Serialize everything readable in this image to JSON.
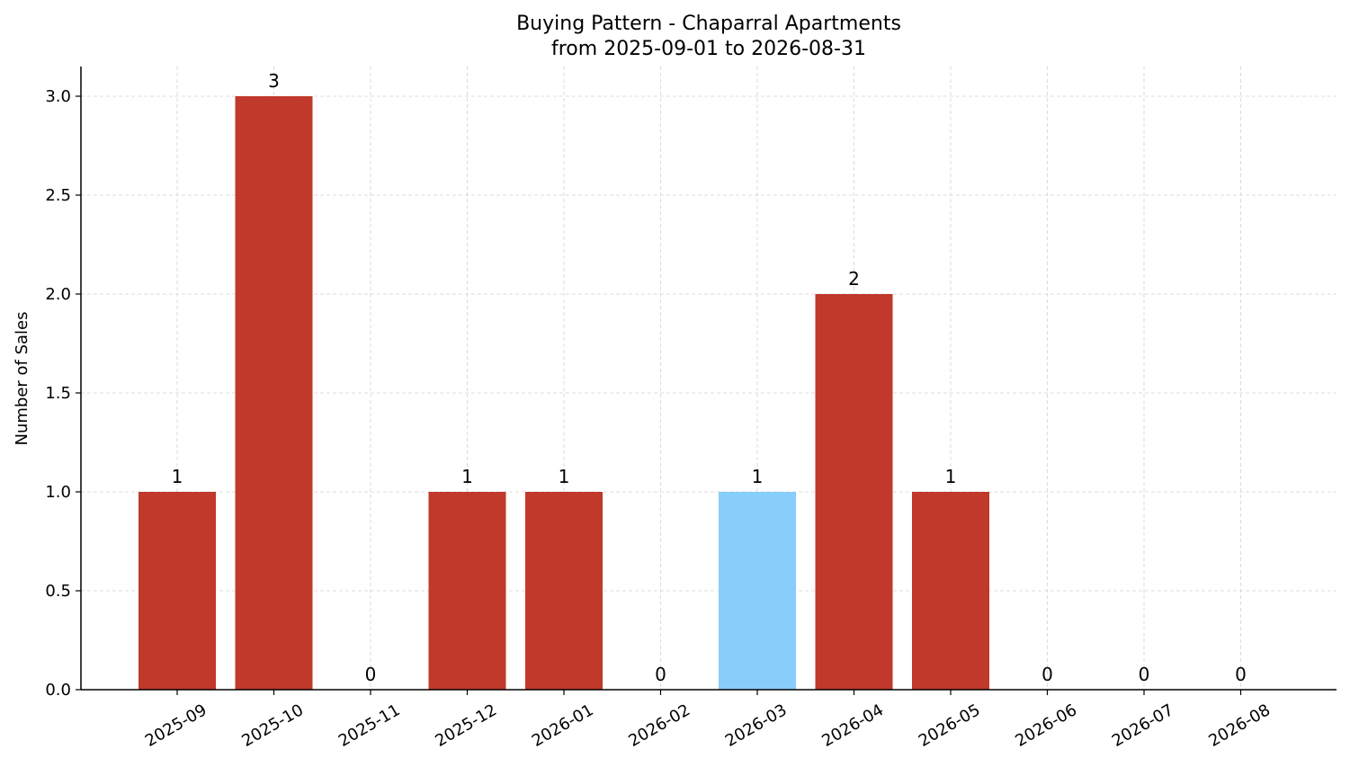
{
  "chart_data": {
    "type": "bar",
    "title": "Buying Pattern - Chaparral Apartments",
    "subtitle": "from 2025-09-01 to 2026-08-31",
    "xlabel": "",
    "ylabel": "Number of Sales",
    "categories": [
      "2025-09",
      "2025-10",
      "2025-11",
      "2025-12",
      "2026-01",
      "2026-02",
      "2026-03",
      "2026-04",
      "2026-05",
      "2026-06",
      "2026-07",
      "2026-08"
    ],
    "values": [
      1,
      3,
      0,
      1,
      1,
      0,
      1,
      2,
      1,
      0,
      0,
      0
    ],
    "highlighted_category": "2026-03",
    "ylim": [
      0,
      3.15
    ],
    "yticks": [
      "0.0",
      "0.5",
      "1.0",
      "1.5",
      "2.0",
      "2.5",
      "3.0"
    ],
    "grid": true,
    "colors": {
      "bar": "#c0392b",
      "highlight": "#87cefa",
      "grid": "#d3d3d3",
      "axis": "#000000"
    }
  }
}
